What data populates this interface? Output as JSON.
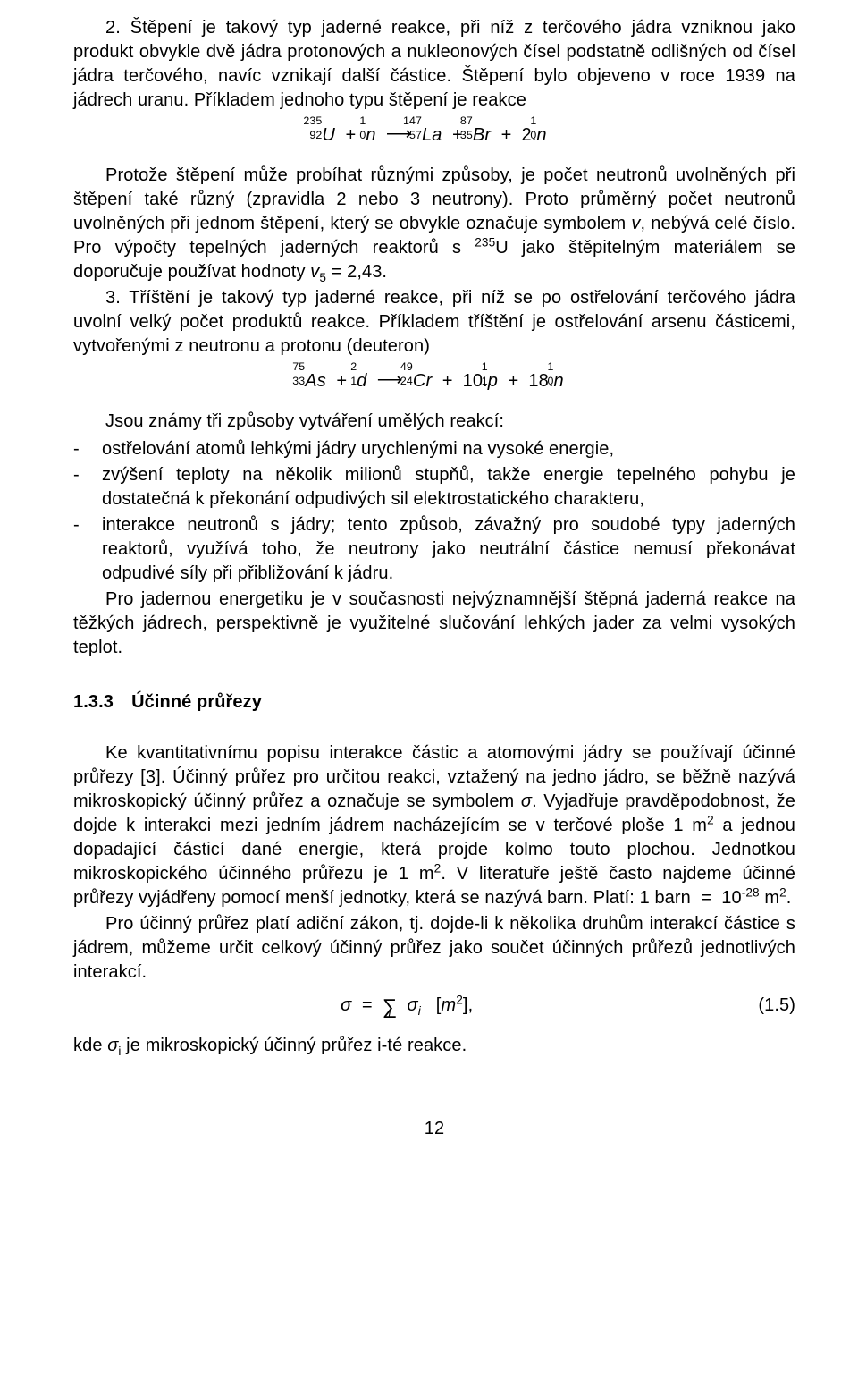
{
  "p1": "2. Štěpení je takový typ jaderné reakce, při níž z terčového jádra vzniknou jako produkt obvykle dvě jádra protonových a nukleonových čísel podstatně odlišných od čísel jádra terčového, navíc vznikají další částice. Štěpení bylo objeveno v roce 1939 na jádrech uranu. Příkladem jednoho typu štěpení je reakce",
  "eq1_html": "<span class=\"iso\"><span class=\"a\">235</span><span class=\"z\">92</span><span class=\"sym\">U</span></span> &nbsp;+&nbsp; <span class=\"iso\"><span class=\"a\">1</span><span class=\"z\">0</span><span class=\"sym\">n</span></span> &nbsp;<span class=\"arrow\">&#10230;</span>&nbsp; <span class=\"iso\"><span class=\"a\">147</span><span class=\"z\">57</span><span class=\"sym\">La</span></span> &nbsp;+&nbsp; <span class=\"iso\"><span class=\"a\">87</span><span class=\"z\">35</span><span class=\"sym\">Br</span></span> &nbsp;+&nbsp; <span class=\"rom\">2.</span><span class=\"iso\"><span class=\"a\">1</span><span class=\"z\">0</span><span class=\"sym\">n</span></span>",
  "p2_html": "Protože štěpení může probíhat různými způsoby, je počet neutronů uvolněných při štěpení také různý (zpravidla 2 nebo 3 neutrony). Proto průměrný počet neutronů uvolněných při jednom štěpení, který se obvykle označuje symbolem <span class=\"it\">v</span>, nebývá celé číslo. Pro výpočty tepelných jaderných reaktorů s <sup>235</sup>U jako štěpitelným materiálem se doporučuje používat hodnoty <span class=\"it\">v</span><sub>5</sub> = 2,43.",
  "p3": "3. Tříštění je takový typ jaderné reakce, při níž se po ostřelování terčového jádra uvolní velký počet produktů reakce. Příkladem tříštění je ostřelování arsenu částicemi, vytvořenými z neutronu a protonu (deuteron)",
  "eq2_html": "<span class=\"iso\"><span class=\"a\">75</span><span class=\"z\">33</span><span class=\"sym\">As</span></span> &nbsp;+&nbsp; <span class=\"iso\"><span class=\"a\">2</span><span class=\"z\">1</span><span class=\"sym\">d</span></span> &nbsp;<span class=\"arrow\">&#10230;</span>&nbsp; <span class=\"iso\"><span class=\"a\">49</span><span class=\"z\">24</span><span class=\"sym\">Cr</span></span> &nbsp;+&nbsp; <span class=\"rom\">10.</span><span class=\"iso\"><span class=\"a\">1</span><span class=\"z\">1</span><span class=\"sym\">p</span></span> &nbsp;+&nbsp; <span class=\"rom\">18.</span><span class=\"iso\"><span class=\"a\">1</span><span class=\"z\">0</span><span class=\"sym\">n</span></span>",
  "p4": "Jsou známy tři způsoby vytváření umělých reakcí:",
  "b1": "ostřelování atomů lehkými jádry urychlenými na vysoké energie,",
  "b2": "zvýšení teploty na několik milionů stupňů, takže energie tepelného pohybu je dostatečná k překonání odpudivých sil elektrostatického charakteru,",
  "b3": "interakce neutronů s jádry; tento způsob, závažný pro soudobé typy jaderných reaktorů, využívá toho, že neutrony jako neutrální částice nemusí překonávat odpudivé síly při přibližování k jádru.",
  "p5": "Pro jadernou energetiku je v současnosti nejvýznamnější štěpná jaderná reakce na těžkých jádrech, perspektivně je využitelné slučování lehkých jader za velmi vysokých teplot.",
  "h1": "1.3.3 Účinné průřezy",
  "p6_html": "Ke kvantitativnímu popisu interakce částic a atomovými jádry se používají účinné průřezy [3]. Účinný průřez pro určitou reakci, vztažený na jedno jádro, se běžně nazývá mikroskopický účinný průřez a označuje se symbolem <span class=\"it\">σ</span>. Vyjadřuje pravděpodobnost, že dojde k interakci mezi jedním jádrem nacházejícím se v terčové ploše 1 m<sup>2</sup> a jednou dopadající částicí dané energie, která projde kolmo touto plochou. Jednotkou mikroskopického účinného průřezu je 1 m<sup>2</sup>. V literatuře ještě často najdeme účinné průřezy vyjádřeny pomocí menší jednotky, která se nazývá barn. Platí: 1 barn &nbsp;=&nbsp; 10<sup>-28</sup> m<sup>2</sup>.",
  "p7": "Pro účinný průřez platí adiční zákon, tj. dojde-li k několika druhům interakcí částice s jádrem, můžeme určit celkový účinný průřez jako součet účinných průřezů jednotlivých interakcí.",
  "eq3_html": "σ &nbsp;=&nbsp; <span class=\"sum\">∑<span class=\"under\">i</span></span>&nbsp; σ<sub>i</sub>&nbsp;&nbsp;&nbsp;<span class=\"rom\">[</span>m<sup><span class=\"rom\">2</span></sup><span class=\"rom\">]</span><span class=\"rom\">,</span>",
  "eq3_num": "(1.5)",
  "p8_html": "kde <span class=\"it\">σ</span><sub>i</sub> je mikroskopický účinný průřez i-té reakce.",
  "pagenum": "12"
}
